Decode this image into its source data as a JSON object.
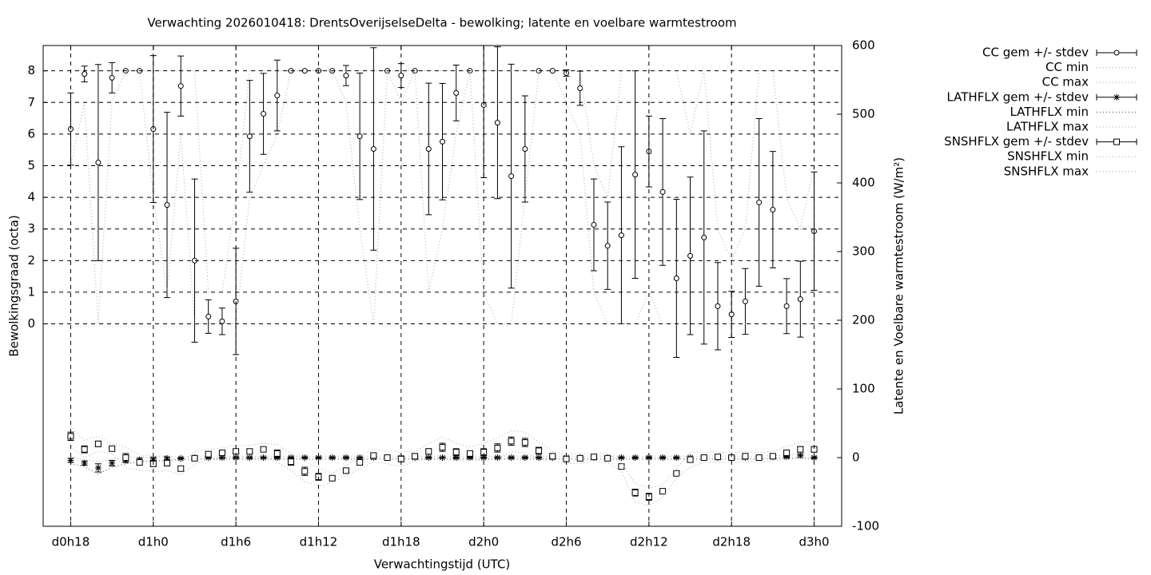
{
  "chart_data": {
    "type": "errorbar",
    "title": "Verwachting 2026010418: DrentsOverijselseDelta - bewolking; latente en voelbare warmtestroom",
    "xlabel": "Verwachtingstijd (UTC)",
    "ylabel": "Bewolkingsgraad (octa)",
    "y2label": "Latente en Voelbare warmtestroom (W/m²)",
    "grid": true,
    "legend": "right",
    "x": [
      18,
      19,
      20,
      21,
      22,
      23,
      24,
      25,
      26,
      27,
      28,
      29,
      30,
      31,
      32,
      33,
      34,
      35,
      36,
      37,
      38,
      39,
      40,
      41,
      42,
      43,
      44,
      45,
      46,
      47,
      48,
      49,
      50,
      51,
      52,
      53,
      54,
      55,
      56,
      57,
      58,
      59,
      60,
      61,
      62,
      63,
      64,
      65,
      66,
      67,
      68,
      69,
      70,
      71,
      72
    ],
    "xlim": [
      16,
      74
    ],
    "xticks": [
      {
        "value": 18,
        "label": "d0h18"
      },
      {
        "value": 24,
        "label": "d1h0"
      },
      {
        "value": 30,
        "label": "d1h6"
      },
      {
        "value": 36,
        "label": "d1h12"
      },
      {
        "value": 42,
        "label": "d1h18"
      },
      {
        "value": 48,
        "label": "d2h0"
      },
      {
        "value": 54,
        "label": "d2h6"
      },
      {
        "value": 60,
        "label": "d2h12"
      },
      {
        "value": 66,
        "label": "d2h18"
      },
      {
        "value": 72,
        "label": "d3h0"
      }
    ],
    "ylim": [
      -6.4,
      8.8
    ],
    "yticks": [
      0,
      1,
      2,
      3,
      4,
      5,
      6,
      7,
      8
    ],
    "y2lim": [
      -100,
      600
    ],
    "y2ticks": [
      -100,
      0,
      100,
      200,
      300,
      400,
      500,
      600
    ],
    "series": [
      {
        "name": "CC gem +/- stdev",
        "style": "errorbar",
        "marker": "circle",
        "color": "#000000",
        "values": [
          6.16,
          7.9,
          5.1,
          7.78,
          8,
          8,
          6.16,
          3.76,
          7.52,
          2.0,
          0.23,
          0.08,
          0.71,
          5.93,
          6.64,
          7.22,
          8,
          8,
          8,
          8,
          7.85,
          5.93,
          5.53,
          8,
          7.85,
          8,
          5.53,
          5.76,
          7.3,
          8,
          6.92,
          6.36,
          4.67,
          5.53,
          8,
          8,
          7.93,
          7.45,
          3.13,
          2.47,
          2.8,
          4.72,
          5.45,
          4.17,
          1.44,
          2.15,
          2.73,
          0.56,
          0.3,
          0.71,
          3.84,
          3.61,
          0.56,
          0.78,
          2.93
        ],
        "errors": [
          1.14,
          0.25,
          3.1,
          0.48,
          0,
          0,
          2.32,
          2.93,
          0.95,
          2.58,
          0.53,
          0.42,
          1.68,
          1.77,
          1.28,
          1.12,
          0,
          0,
          0,
          0,
          0.32,
          2.0,
          3.2,
          0,
          0.38,
          0,
          2.08,
          1.84,
          0.88,
          0,
          2.3,
          2.4,
          3.54,
          1.68,
          0,
          0,
          0.1,
          0.54,
          1.45,
          1.38,
          2.8,
          3.28,
          1.12,
          2.32,
          2.5,
          2.49,
          3.37,
          1.38,
          0.73,
          1.04,
          2.65,
          1.84,
          0.87,
          1.2,
          1.87
        ]
      },
      {
        "name": "CC min",
        "style": "dotted",
        "color": "#aaaaaa",
        "values": [
          5,
          7,
          0,
          7,
          8,
          8,
          4,
          1,
          6,
          0,
          0,
          0,
          0,
          4,
          5,
          6,
          8,
          8,
          8,
          8,
          7,
          3,
          0,
          8,
          7,
          8,
          1,
          3,
          6,
          8,
          1,
          0,
          0,
          4,
          8,
          8,
          7,
          6,
          1,
          0,
          0,
          0,
          1,
          0,
          0,
          0,
          0,
          0,
          0,
          0,
          0,
          0,
          0,
          0,
          0
        ]
      },
      {
        "name": "CC max",
        "style": "dotted",
        "color": "#aaaaaa",
        "values": [
          8,
          8,
          8,
          8,
          8,
          8,
          8,
          8,
          8,
          8,
          1,
          1,
          4,
          8,
          8,
          8,
          8,
          8,
          8,
          8,
          8,
          8,
          8,
          8,
          8,
          8,
          8,
          8,
          8,
          8,
          8,
          8,
          8,
          8,
          8,
          8,
          8,
          8,
          5,
          4,
          8,
          8,
          8,
          8,
          8,
          6,
          8,
          3,
          2,
          3,
          8,
          8,
          4,
          3,
          5
        ]
      },
      {
        "name": "LATHFLX gem +/- stdev",
        "style": "errorbar",
        "marker": "star",
        "color": "#000000",
        "axis": "y2",
        "values": [
          -4,
          -8,
          -15,
          -8,
          -4,
          -3,
          -2,
          -1,
          -1,
          0,
          0,
          0,
          0,
          0,
          0,
          0,
          0,
          0,
          0,
          0,
          0,
          0,
          0,
          0,
          0,
          0,
          0,
          0,
          0,
          0,
          0,
          0,
          0,
          0,
          0,
          0,
          0,
          0,
          0,
          0,
          0,
          0,
          0,
          0,
          0,
          0,
          0,
          0,
          0,
          0,
          0,
          1,
          1,
          3,
          0
        ],
        "errors": [
          3,
          3,
          6,
          4,
          3,
          2,
          2,
          2,
          1,
          1,
          1,
          1,
          1,
          1,
          1,
          1,
          1,
          1,
          1,
          1,
          1,
          1,
          1,
          1,
          1,
          1,
          1,
          1,
          1,
          1,
          1,
          1,
          1,
          1,
          1,
          1,
          1,
          1,
          1,
          1,
          1,
          1,
          1,
          1,
          1,
          1,
          1,
          1,
          1,
          1,
          1,
          1,
          1,
          2,
          1
        ]
      },
      {
        "name": "LATHFLX min",
        "style": "dotted",
        "color": "#444444",
        "axis": "y2",
        "values": [
          -9,
          -13,
          -24,
          -14,
          -9,
          -6,
          -5,
          -4,
          -3,
          -2,
          -2,
          -2,
          -2,
          -2,
          -2,
          -2,
          -2,
          -2,
          -2,
          -2,
          -2,
          -2,
          -2,
          -2,
          -2,
          -2,
          -2,
          -2,
          -2,
          -2,
          -2,
          -2,
          -2,
          -2,
          -2,
          -2,
          -2,
          -2,
          -2,
          -2,
          -2,
          -2,
          -2,
          -2,
          -2,
          -2,
          -2,
          -2,
          -2,
          -2,
          -2,
          -1,
          -1,
          -1,
          -2
        ]
      },
      {
        "name": "LATHFLX max",
        "style": "dotted",
        "color": "#aaaaaa",
        "axis": "y2",
        "values": [
          1,
          -3,
          -6,
          -2,
          1,
          0,
          1,
          2,
          1,
          2,
          2,
          2,
          2,
          2,
          2,
          2,
          2,
          2,
          2,
          2,
          2,
          2,
          2,
          2,
          2,
          2,
          2,
          2,
          2,
          2,
          2,
          2,
          2,
          2,
          2,
          2,
          2,
          2,
          2,
          2,
          2,
          2,
          2,
          2,
          2,
          2,
          2,
          2,
          2,
          2,
          2,
          3,
          3,
          7,
          2
        ]
      },
      {
        "name": "SNSHFLX gem +/- stdev",
        "style": "errorbar",
        "marker": "square",
        "color": "#000000",
        "axis": "y2",
        "values": [
          31,
          12,
          20,
          13,
          0,
          -7,
          -9,
          -8,
          -16,
          -1,
          5,
          7,
          9,
          9,
          12,
          6,
          -6,
          -20,
          -28,
          -30,
          -19,
          -7,
          3,
          0,
          -2,
          2,
          9,
          15,
          8,
          6,
          8,
          14,
          24,
          22,
          10,
          2,
          -2,
          -1,
          1,
          -1,
          -13,
          -51,
          -57,
          -49,
          -23,
          -3,
          0,
          1,
          0,
          2,
          0,
          2,
          7,
          12,
          12
        ],
        "errors": [
          6,
          5,
          4,
          2,
          6,
          4,
          4,
          4,
          3,
          3,
          2,
          2,
          3,
          3,
          3,
          5,
          5,
          6,
          5,
          2,
          2,
          3,
          3,
          3,
          4,
          2,
          4,
          6,
          5,
          3,
          5,
          6,
          6,
          6,
          5,
          2,
          2,
          2,
          1,
          2,
          2,
          5,
          5,
          3,
          2,
          4,
          2,
          2,
          2,
          2,
          2,
          2,
          3,
          4,
          4
        ]
      },
      {
        "name": "SNSHFLX min",
        "style": "dotted",
        "color": "#aaaaaa",
        "axis": "y2",
        "values": [
          16,
          0,
          9,
          6,
          -15,
          -18,
          -20,
          -19,
          -25,
          -10,
          -2,
          0,
          0,
          0,
          3,
          -7,
          -19,
          -35,
          -41,
          -37,
          -26,
          -16,
          -6,
          -9,
          -13,
          -5,
          -2,
          0,
          -5,
          -3,
          -5,
          -1,
          9,
          7,
          -3,
          -5,
          -9,
          -8,
          -4,
          -8,
          -20,
          -64,
          -70,
          -58,
          -30,
          -14,
          -7,
          -6,
          -7,
          -5,
          -7,
          -5,
          -2,
          1,
          1
        ]
      },
      {
        "name": "SNSHFLX max",
        "style": "dotted",
        "color": "#aaaaaa",
        "axis": "y2",
        "values": [
          46,
          25,
          31,
          20,
          15,
          4,
          2,
          3,
          -7,
          8,
          12,
          14,
          18,
          18,
          21,
          19,
          7,
          -5,
          -15,
          -23,
          -12,
          2,
          12,
          9,
          9,
          9,
          20,
          30,
          21,
          15,
          21,
          29,
          39,
          37,
          23,
          9,
          5,
          6,
          6,
          6,
          -6,
          -38,
          -44,
          -40,
          -16,
          8,
          7,
          8,
          7,
          9,
          7,
          9,
          16,
          23,
          23
        ]
      }
    ]
  }
}
